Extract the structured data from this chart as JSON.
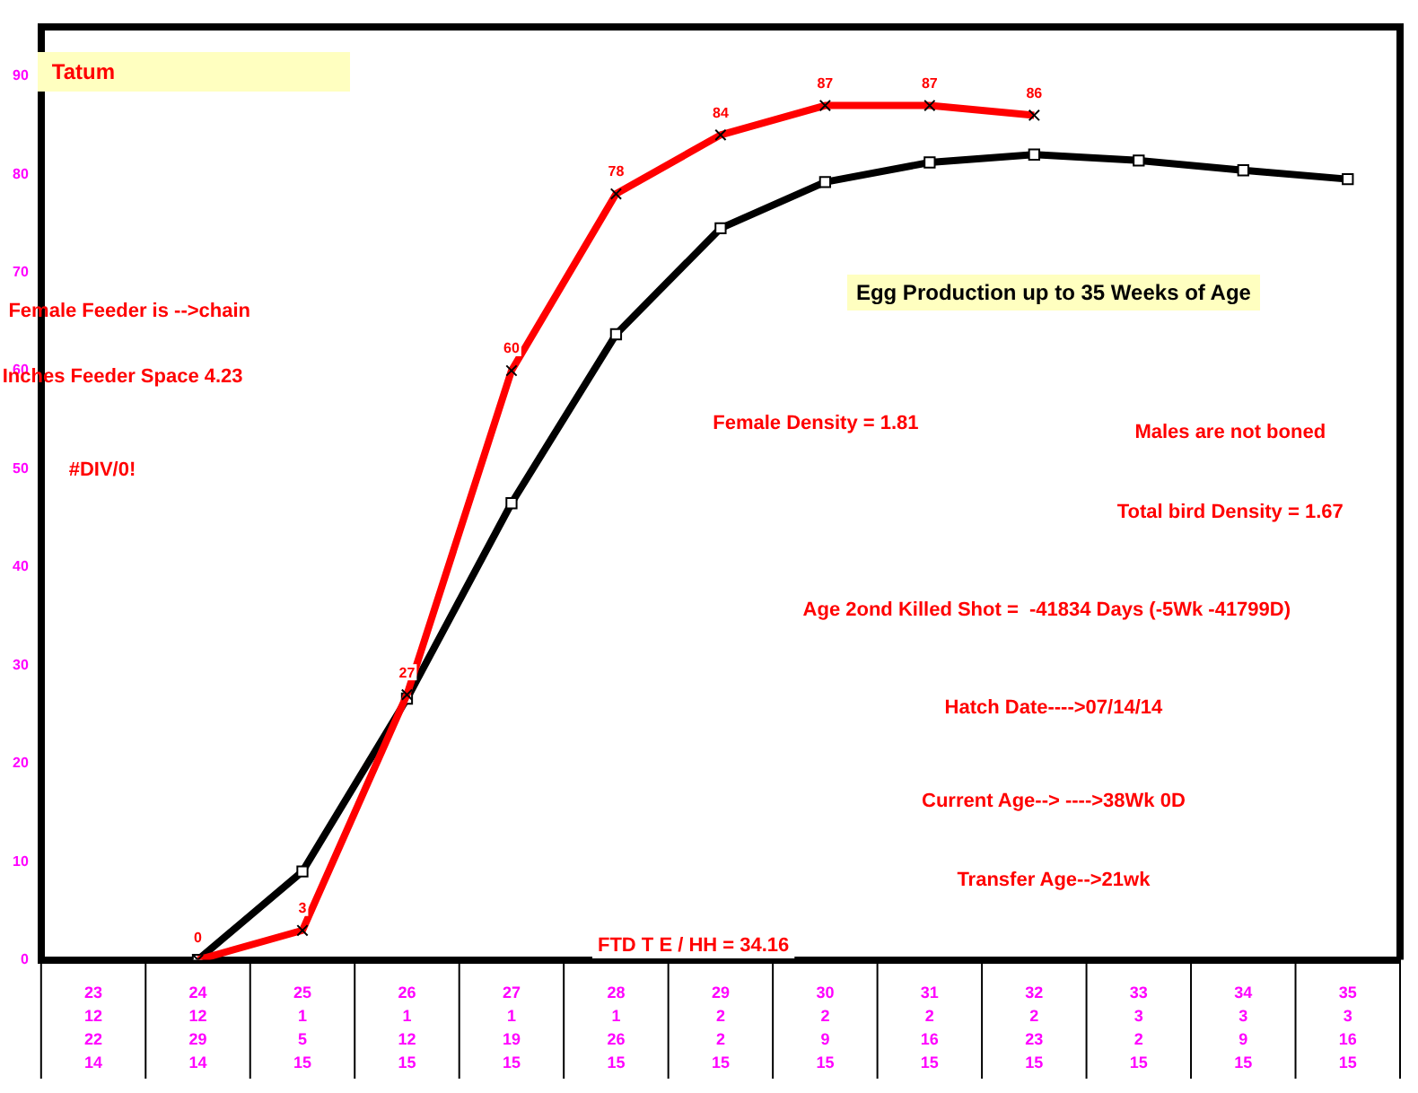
{
  "chart_data": {
    "type": "line",
    "title": "Egg Production up to 35 Weeks of Age",
    "subtitle": "Tatum",
    "categories": [
      "23\n12\n22\n14",
      "24\n12\n29\n14",
      "25\n1\n5\n15",
      "26\n1\n12\n15",
      "27\n1\n19\n15",
      "28\n1\n26\n15",
      "29\n2\n2\n15",
      "30\n2\n9\n15",
      "31\n2\n16\n15",
      "32\n2\n23\n15",
      "33\n3\n2\n15",
      "34\n3\n9\n15",
      "35\n3\n16\n15"
    ],
    "series": [
      {
        "color": "#ff0000",
        "marker": "cross",
        "values": [
          null,
          0,
          3,
          27,
          60,
          78,
          84,
          87,
          87,
          86,
          null,
          null,
          null
        ],
        "value_labels": [
          null,
          "0",
          "3",
          "27",
          "60",
          "78",
          "84",
          "87",
          "87",
          "86",
          null,
          null,
          null
        ]
      },
      {
        "color": "#000000",
        "marker": "square",
        "values": [
          null,
          0,
          9,
          26.6,
          46.5,
          63.7,
          74.5,
          79.2,
          81.2,
          82,
          81.4,
          80.4,
          79.5
        ]
      }
    ],
    "ylim": [
      0,
      95
    ],
    "yticks": [
      0,
      10,
      20,
      30,
      40,
      50,
      60,
      70,
      80,
      90
    ],
    "grid": false,
    "legend": false,
    "annotations": [
      "Female Feeder is -->chain",
      "Inches Feeder Space 4.23",
      "#DIV/0!",
      "Female Density = 1.81",
      "Males are not boned",
      "Total bird Density = 1.67",
      "Age 2ond Killed Shot =  -41834 Days (-5Wk -41799D)",
      "Hatch Date---->07/14/14",
      "Current Age--> ---->38Wk 0D",
      "Transfer Age-->21wk",
      "FTD T E / HH = 34.16"
    ]
  }
}
